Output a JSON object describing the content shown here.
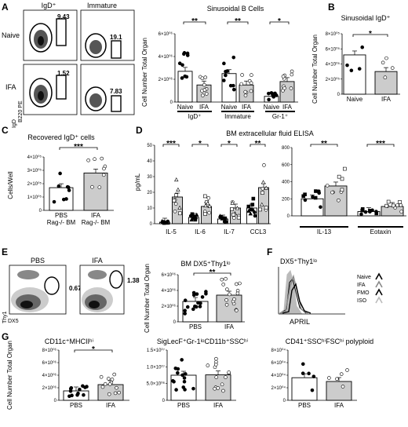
{
  "panels": {
    "A": "A",
    "B": "B",
    "C": "C",
    "D": "D",
    "E": "E",
    "F": "F",
    "G": "G"
  },
  "flowA": {
    "col1": "IgD⁺",
    "col2": "Immature",
    "row1": "Naive",
    "row2": "IFA",
    "yaxis": "IgD",
    "xaxis": "B220 PE",
    "gates": [
      "9.43",
      "19.1",
      "1.52",
      "7.83"
    ]
  },
  "flowE": {
    "col1": "PBS",
    "col2": "IFA",
    "yaxis": "Thy1",
    "xaxis": "DX5",
    "gates": [
      "0.67",
      "1.38"
    ]
  },
  "histF": {
    "title": "DX5⁺Thy1ˡᵒ",
    "xaxis": "APRIL",
    "legend": [
      {
        "name": "Naive",
        "color": "#000000"
      },
      {
        "name": "IFA",
        "color": "#888888"
      },
      {
        "name": "FMO",
        "color": "#000000"
      },
      {
        "name": "ISO",
        "color": "#bbbbbb"
      }
    ]
  },
  "chart_data": [
    {
      "id": "A",
      "type": "bar",
      "title": "Sinusoidal B Cells",
      "ylabel": "Cell Number Total Organ",
      "yticks": [
        "0",
        "2×10⁰⁶",
        "4×10⁰⁶",
        "6×10⁰⁶"
      ],
      "ylim": [
        0,
        6000000
      ],
      "groups": [
        "IgD⁺",
        "Immature",
        "Gr-1⁺"
      ],
      "categories": [
        "Naive",
        "IFA",
        "Naive",
        "IFA",
        "Naive",
        "IFA"
      ],
      "values": [
        2700000,
        1500000,
        2500000,
        1500000,
        500000,
        1800000
      ],
      "fills": [
        "#ffffff",
        "#cccccc",
        "#ffffff",
        "#cccccc",
        "#ffffff",
        "#cccccc"
      ],
      "sig": [
        {
          "from": 0,
          "to": 1,
          "label": "**"
        },
        {
          "from": 2,
          "to": 3,
          "label": "**"
        },
        {
          "from": 4,
          "to": 5,
          "label": "*"
        }
      ]
    },
    {
      "id": "B",
      "type": "bar",
      "title": "Sinusoidal IgD⁺",
      "ylabel": "Cell Number Total Organ",
      "yticks": [
        "0",
        "2×10⁰⁵",
        "4×10⁰⁵",
        "6×10⁰⁵",
        "8×10⁰⁵"
      ],
      "ylim": [
        0,
        800000
      ],
      "categories": [
        "Naive",
        "IFA"
      ],
      "values": [
        520000,
        300000
      ],
      "fills": [
        "#ffffff",
        "#cccccc"
      ],
      "sig": [
        {
          "from": 0,
          "to": 1,
          "label": "*"
        }
      ]
    },
    {
      "id": "C",
      "type": "bar",
      "title": "Recovered IgD⁺ cells",
      "ylabel": "Cells/Well",
      "yticks": [
        "0",
        "1×10⁰⁵",
        "2×10⁰⁵",
        "3×10⁰⁵",
        "4×10⁰⁵"
      ],
      "ylim": [
        0,
        400000
      ],
      "categories": [
        "PBS\nRag-/- BM",
        "IFA\nRag-/- BM"
      ],
      "values": [
        170000,
        280000
      ],
      "fills": [
        "#ffffff",
        "#cccccc"
      ],
      "sig": [
        {
          "from": 0,
          "to": 1,
          "label": "***"
        }
      ]
    },
    {
      "id": "D1",
      "type": "bar",
      "title": "BM extracellular fluid ELISA",
      "ylabel": "pg/mL",
      "yticks": [
        "0",
        "10",
        "20",
        "30",
        "40",
        "50"
      ],
      "ylim": [
        0,
        50
      ],
      "groups": [
        "IL-5",
        "IL-6",
        "IL-7",
        "CCL3"
      ],
      "values": [
        1,
        17,
        4,
        11,
        3,
        10,
        10,
        23
      ],
      "fills": [
        "#ffffff",
        "#cccccc",
        "#ffffff",
        "#cccccc",
        "#ffffff",
        "#cccccc",
        "#ffffff",
        "#cccccc"
      ],
      "sig": [
        {
          "from": 0,
          "to": 1,
          "label": "***"
        },
        {
          "from": 2,
          "to": 3,
          "label": "*"
        },
        {
          "from": 4,
          "to": 5,
          "label": "*"
        },
        {
          "from": 6,
          "to": 7,
          "label": "**"
        }
      ]
    },
    {
      "id": "D2",
      "type": "bar",
      "yticks": [
        "0",
        "200",
        "400",
        "600",
        "800"
      ],
      "ylim": [
        0,
        800
      ],
      "groups": [
        "IL-13",
        "Eotaxin"
      ],
      "values": [
        200,
        350,
        50,
        110
      ],
      "fills": [
        "#ffffff",
        "#cccccc",
        "#ffffff",
        "#cccccc"
      ],
      "sig": [
        {
          "from": 0,
          "to": 1,
          "label": "**"
        },
        {
          "from": 2,
          "to": 3,
          "label": "***"
        }
      ]
    },
    {
      "id": "E",
      "type": "bar",
      "title": "BM DX5⁺Thy1ˡᵒ",
      "ylabel": "Cell Number Total Organ",
      "yticks": [
        "0",
        "2×10⁰⁶",
        "4×10⁰⁶",
        "6×10⁰⁶"
      ],
      "ylim": [
        0,
        6000000
      ],
      "categories": [
        "PBS",
        "IFA"
      ],
      "values": [
        2600000,
        3400000
      ],
      "fills": [
        "#ffffff",
        "#cccccc"
      ],
      "sig": [
        {
          "from": 0,
          "to": 1,
          "label": "**"
        }
      ]
    },
    {
      "id": "G1",
      "type": "bar",
      "title": "CD11c⁺MHCIIʰⁱ",
      "ylabel": "Cell Number Total Organ",
      "yticks": [
        "0",
        "2×10⁰⁶",
        "4×10⁰⁶",
        "6×10⁰⁶",
        "8×10⁰⁶"
      ],
      "ylim": [
        0,
        8000000
      ],
      "categories": [
        "PBS",
        "IFA"
      ],
      "values": [
        1500000,
        2500000
      ],
      "fills": [
        "#ffffff",
        "#cccccc"
      ],
      "sig": [
        {
          "from": 0,
          "to": 1,
          "label": "*"
        }
      ]
    },
    {
      "id": "G2",
      "type": "bar",
      "title": "SigLecF⁺Gr-1ˡᵒCD11b⁺SSCʰⁱ",
      "yticks": [
        "0",
        "5.0×10⁰⁶",
        "1.0×10⁰⁷",
        "1.5×10⁰⁷"
      ],
      "ylim": [
        0,
        15000000
      ],
      "categories": [
        "PBS",
        "IFA"
      ],
      "values": [
        7500000,
        7600000
      ],
      "fills": [
        "#ffffff",
        "#cccccc"
      ],
      "sig": []
    },
    {
      "id": "G3",
      "type": "bar",
      "title": "CD41⁺SSCʰⁱFSCʰⁱ polyploid",
      "yticks": [
        "0",
        "2×10⁰⁴",
        "4×10⁰⁴",
        "6×10⁰⁴",
        "8×10⁰⁴"
      ],
      "ylim": [
        0,
        80000
      ],
      "categories": [
        "PBS",
        "IFA"
      ],
      "values": [
        36000,
        30000
      ],
      "fills": [
        "#ffffff",
        "#cccccc"
      ],
      "sig": []
    }
  ]
}
